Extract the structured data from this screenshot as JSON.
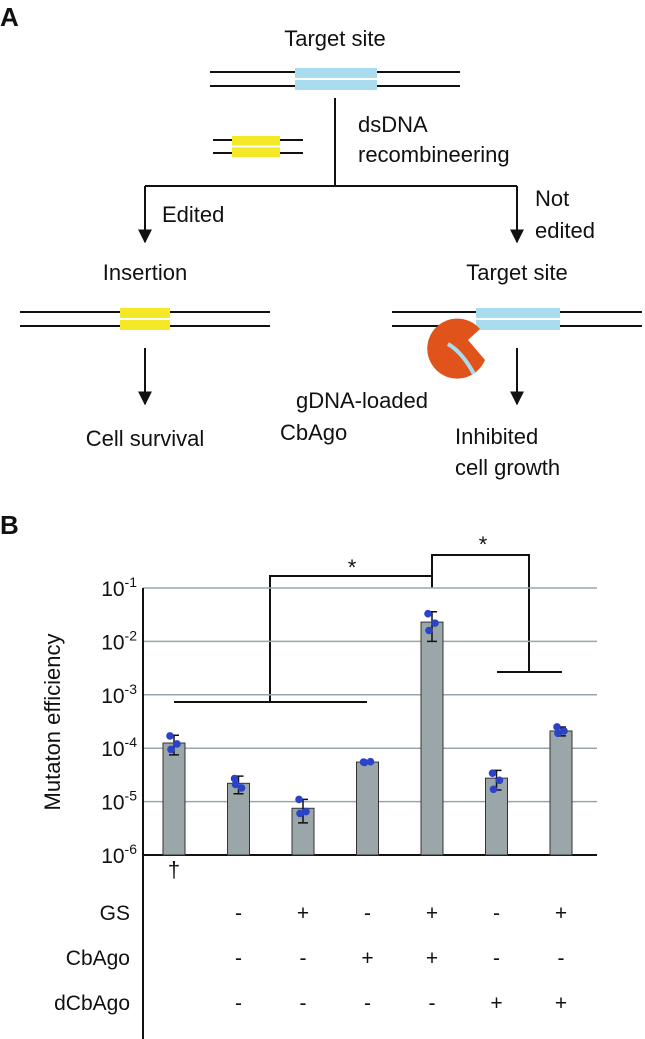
{
  "diagram": {
    "panel_a": "A",
    "panel_b": "B",
    "top_label": "Target site",
    "recombineering": [
      "dsDNA",
      "recombineering"
    ],
    "edited": "Edited",
    "not_edited": [
      "Not",
      "edited"
    ],
    "insertion": "Insertion",
    "target_site": "Target site",
    "cell_survival": "Cell survival",
    "cbago": [
      "gDNA-loaded",
      "CbAgo"
    ],
    "inhibited": [
      "Inhibited",
      "cell growth"
    ]
  },
  "chart_data": {
    "type": "bar",
    "ylabel": "Mutaton efficiency",
    "log_scale": true,
    "grid": true,
    "color": "#9ba6a8",
    "point_color": "#2b43c8",
    "categories": [
      null,
      null,
      null,
      null,
      null,
      null,
      null
    ],
    "values": [
      0.000125,
      2.2e-05,
      7.5e-06,
      5.5e-05,
      0.023,
      2.75e-05,
      0.00021
    ],
    "errors": [
      5e-05,
      8e-06,
      3.5e-06,
      2e-06,
      0.013,
      1.1e-05,
      4e-05
    ],
    "points": [
      [
        0.00017,
        0.00012,
        9.5e-05
      ],
      [
        2.7e-05,
        1.8e-05,
        2.1e-05
      ],
      [
        1.1e-05,
        6.5e-06,
        6e-06
      ],
      [
        5.5e-05,
        5.6e-05,
        5.4e-05
      ],
      [
        0.033,
        0.022,
        0.016
      ],
      [
        3.4e-05,
        2.5e-05,
        1.7e-05
      ],
      [
        0.00025,
        0.00021,
        0.00019
      ]
    ],
    "ylim": [
      1e-06,
      0.1
    ],
    "yticks": [
      {
        "value": 1e-06,
        "label": "10-6"
      },
      {
        "value": 1e-05,
        "label": "10-5"
      },
      {
        "value": 0.0001,
        "label": "10-4"
      },
      {
        "value": 0.001,
        "label": "10-3"
      },
      {
        "value": 0.01,
        "label": "10-2"
      },
      {
        "value": 0.1,
        "label": "10-1"
      }
    ],
    "annotations": {
      "dagger": "†",
      "sig1": "*",
      "sig2": "*"
    },
    "conditions": [
      {
        "label": "GS",
        "signs": [
          null,
          "-",
          "+",
          "-",
          "+",
          "-",
          "+"
        ]
      },
      {
        "label": "CbAgo",
        "signs": [
          null,
          "-",
          "-",
          "+",
          "+",
          "-",
          "-"
        ]
      },
      {
        "label": "dCbAgo",
        "signs": [
          null,
          "-",
          "-",
          "-",
          "-",
          "+",
          "+"
        ]
      }
    ]
  }
}
